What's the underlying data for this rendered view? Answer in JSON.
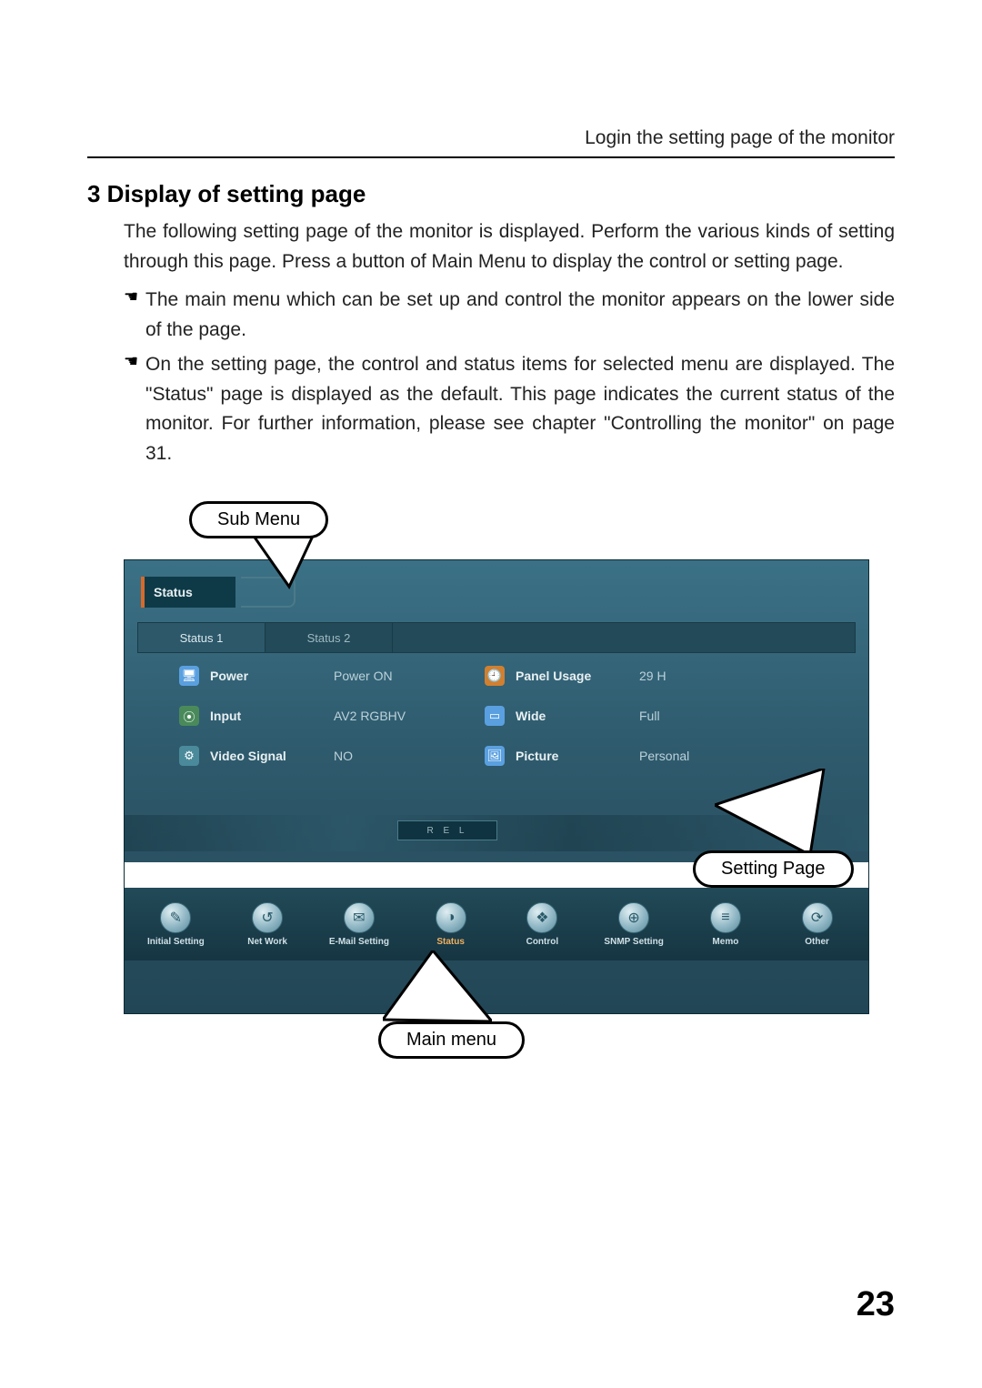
{
  "header": {
    "right_text": "Login the setting page of the monitor"
  },
  "section": {
    "title": "3 Display of setting page",
    "intro": "The following setting page of the monitor is displayed. Perform the various kinds of setting through this page. Press a button of Main Menu to display the control or setting page.",
    "bullets": [
      "The main menu which can be set up and control the monitor appears on the lower side of the page.",
      "On the setting page, the control and status items for selected menu are displayed. The \"Status\" page is displayed as the default. This page indicates the current status of the monitor. For further information, please see chapter \"Controlling the monitor\" on page 31."
    ]
  },
  "callouts": {
    "sub_menu": "Sub Menu",
    "setting_page": "Setting Page",
    "main_menu": "Main menu"
  },
  "screenshot": {
    "sub_tab_label": "Status",
    "tabs": [
      "Status 1",
      "Status 2"
    ],
    "active_tab_index": 0,
    "rows": [
      {
        "icon_bg": "#5aa0e0",
        "icon_glyph": "🖥",
        "label": "Power",
        "value": "Power ON",
        "icon2_bg": "#d08030",
        "icon2_glyph": "🕘",
        "label2": "Panel Usage",
        "value2": "29 H"
      },
      {
        "icon_bg": "#4a8a5a",
        "icon_glyph": "⦿",
        "label": "Input",
        "value": "AV2 RGBHV",
        "icon2_bg": "#5aa0e0",
        "icon2_glyph": "▭",
        "label2": "Wide",
        "value2": "Full"
      },
      {
        "icon_bg": "#4a8a9a",
        "icon_glyph": "⚙",
        "label": "Video Signal",
        "value": "NO",
        "icon2_bg": "#5aa0e0",
        "icon2_glyph": "🖼",
        "label2": "Picture",
        "value2": "Personal"
      }
    ],
    "deco_letters": "R   E   L",
    "main_menu": [
      {
        "label": "Initial Setting",
        "glyph": "✎"
      },
      {
        "label": "Net Work",
        "glyph": "↺"
      },
      {
        "label": "E-Mail Setting",
        "glyph": "✉"
      },
      {
        "label": "Status",
        "glyph": "◑",
        "selected": true
      },
      {
        "label": "Control",
        "glyph": "❖"
      },
      {
        "label": "SNMP Setting",
        "glyph": "⊕"
      },
      {
        "label": "Memo",
        "glyph": "≡"
      },
      {
        "label": "Other",
        "glyph": "⟳"
      }
    ]
  },
  "page_number": "23"
}
